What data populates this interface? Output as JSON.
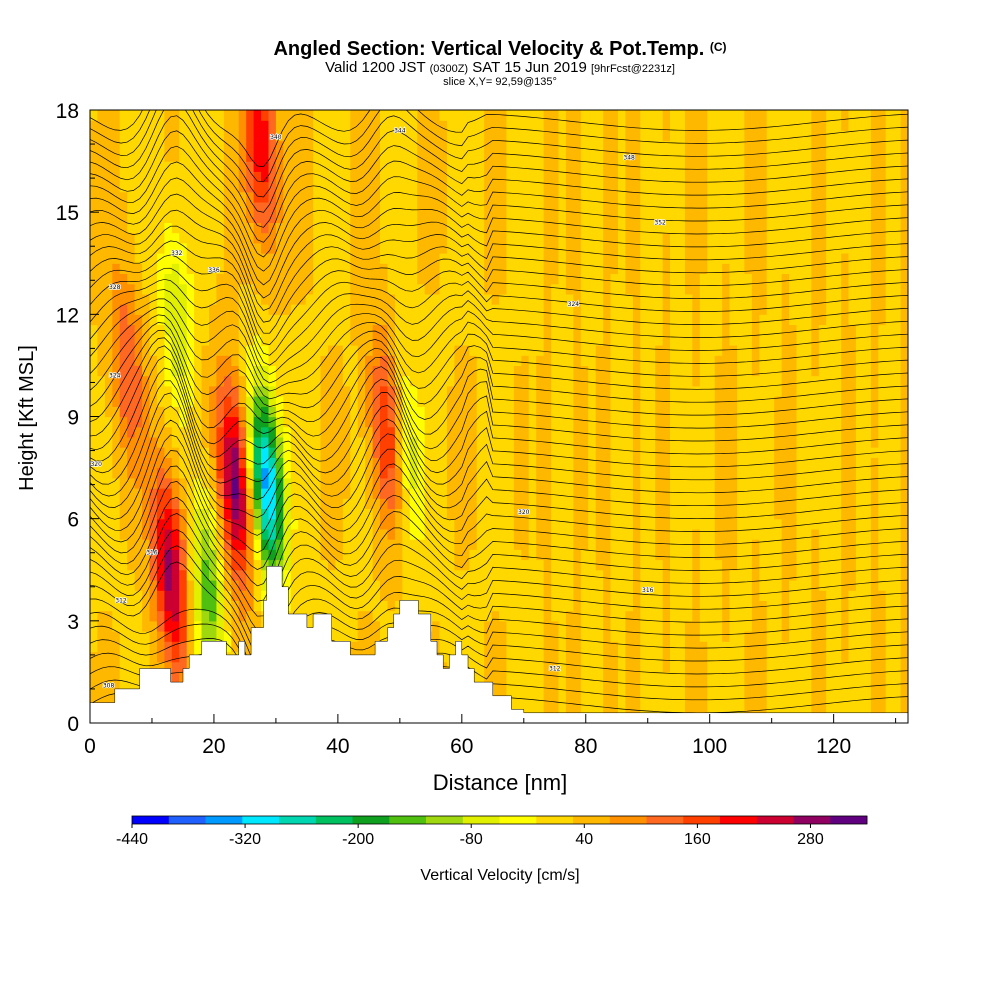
{
  "header": {
    "title": "Angled Section: Vertical Velocity & Pot.Temp.",
    "title_mark": "(C)",
    "valid_prefix": "Valid 1200 JST",
    "valid_utc": "(0300Z)",
    "valid_date": "SAT 15 Jun 2019",
    "forecast_tag": "[9hrFcst@2231z]",
    "slice": "slice X,Y= 92,59@135°"
  },
  "chart_data": {
    "type": "heatmap",
    "xlabel": "Distance [nm]",
    "ylabel": "Height [Kft MSL]",
    "xlim": [
      0,
      132
    ],
    "ylim": [
      0,
      18
    ],
    "x_ticks": [
      0,
      20,
      40,
      60,
      80,
      100,
      120
    ],
    "y_ticks": [
      0,
      3,
      6,
      9,
      12,
      15,
      18
    ],
    "grid": false,
    "colorbar": {
      "label": "Vertical Velocity [cm/s]",
      "tick_labels": [
        "-440",
        "-320",
        "-200",
        "-80",
        "40",
        "160",
        "280"
      ],
      "tick_values": [
        -440,
        -320,
        -200,
        -80,
        40,
        160,
        280
      ],
      "range": [
        -440,
        340
      ],
      "colors": [
        "#0000ff",
        "#2060ff",
        "#0099ff",
        "#00e8ff",
        "#00d6b0",
        "#00c060",
        "#10a020",
        "#50c010",
        "#a0d810",
        "#e0f000",
        "#ffff00",
        "#ffd800",
        "#ffb800",
        "#ff9000",
        "#ff6820",
        "#ff4000",
        "#ff0000",
        "#cc0030",
        "#900060",
        "#600080"
      ]
    },
    "terrain_kft": [
      [
        0,
        0.6
      ],
      [
        4,
        1.0
      ],
      [
        8,
        1.6
      ],
      [
        11,
        1.6
      ],
      [
        13,
        1.2
      ],
      [
        15,
        1.6
      ],
      [
        16,
        2.0
      ],
      [
        18,
        2.4
      ],
      [
        21,
        2.4
      ],
      [
        22,
        2.0
      ],
      [
        24,
        2.4
      ],
      [
        25,
        2.0
      ],
      [
        26,
        2.8
      ],
      [
        28,
        3.6
      ],
      [
        28.5,
        4.6
      ],
      [
        30,
        4.6
      ],
      [
        31,
        4.0
      ],
      [
        32,
        3.2
      ],
      [
        34,
        3.2
      ],
      [
        35,
        2.8
      ],
      [
        36,
        3.2
      ],
      [
        37,
        3.2
      ],
      [
        39,
        2.4
      ],
      [
        40,
        2.4
      ],
      [
        42,
        2.0
      ],
      [
        45,
        2.0
      ],
      [
        46,
        2.4
      ],
      [
        48,
        2.8
      ],
      [
        49,
        3.2
      ],
      [
        50,
        3.6
      ],
      [
        52,
        3.6
      ],
      [
        53,
        3.2
      ],
      [
        55,
        2.4
      ],
      [
        56,
        2.0
      ],
      [
        57,
        1.6
      ],
      [
        58,
        2.0
      ],
      [
        59,
        2.4
      ],
      [
        60,
        2.0
      ],
      [
        61,
        1.6
      ],
      [
        62,
        1.2
      ],
      [
        65,
        0.8
      ],
      [
        68,
        0.4
      ],
      [
        70,
        0.3
      ],
      [
        75,
        0.3
      ],
      [
        132,
        0.3
      ]
    ],
    "updrafts": [
      {
        "x": 13,
        "y": 4.5,
        "peak_cms": 260
      },
      {
        "x": 23.5,
        "y": 7.0,
        "peak_cms": 300
      },
      {
        "x": 27.5,
        "y": 17.0,
        "peak_cms": 200
      },
      {
        "x": 48,
        "y": 8.5,
        "peak_cms": 180
      },
      {
        "x": 6,
        "y": 10.5,
        "peak_cms": 120
      }
    ],
    "downdrafts": [
      {
        "x": 28.5,
        "y": 7.0,
        "peak_cms": -380
      },
      {
        "x": 19,
        "y": 4.0,
        "peak_cms": -180
      },
      {
        "x": 51,
        "y": 8.0,
        "peak_cms": -120
      },
      {
        "x": 14,
        "y": 12.0,
        "peak_cms": -110
      }
    ],
    "contour_labels": [
      {
        "x": 3,
        "y": 1.1,
        "text": "308"
      },
      {
        "x": 5,
        "y": 3.6,
        "text": "312"
      },
      {
        "x": 10,
        "y": 5.0,
        "text": "316"
      },
      {
        "x": 1,
        "y": 7.6,
        "text": "320"
      },
      {
        "x": 4,
        "y": 10.2,
        "text": "324"
      },
      {
        "x": 4,
        "y": 12.8,
        "text": "328"
      },
      {
        "x": 14,
        "y": 13.8,
        "text": "332"
      },
      {
        "x": 20,
        "y": 13.3,
        "text": "336"
      },
      {
        "x": 30,
        "y": 17.2,
        "text": "340"
      },
      {
        "x": 50,
        "y": 17.4,
        "text": "344"
      },
      {
        "x": 87,
        "y": 16.6,
        "text": "348"
      },
      {
        "x": 92,
        "y": 14.7,
        "text": "352"
      },
      {
        "x": 78,
        "y": 12.3,
        "text": "324"
      },
      {
        "x": 70,
        "y": 6.2,
        "text": "320"
      },
      {
        "x": 90,
        "y": 3.9,
        "text": "316"
      },
      {
        "x": 75,
        "y": 1.6,
        "text": "312"
      }
    ]
  }
}
